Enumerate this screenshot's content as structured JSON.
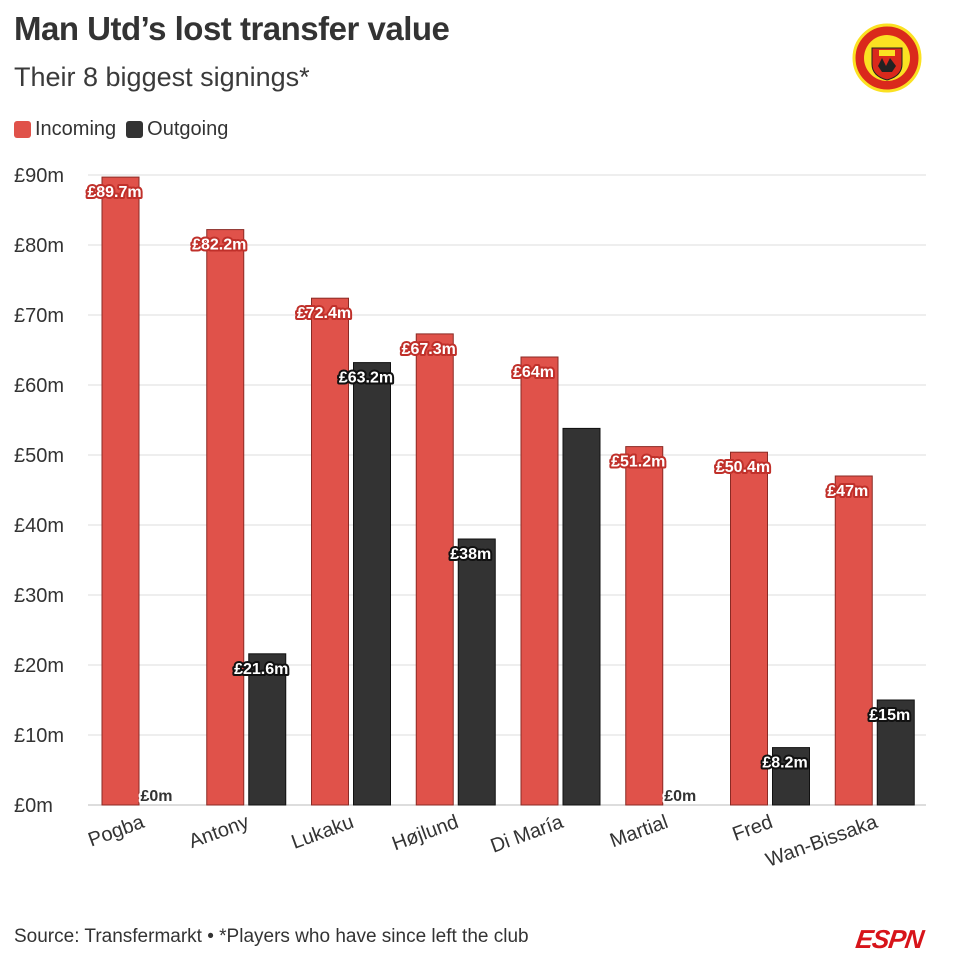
{
  "header": {
    "title": "Man Utd’s lost transfer value",
    "subtitle": "Their 8 biggest signings*"
  },
  "legend": {
    "incoming_label": "Incoming",
    "outgoing_label": "Outgoing"
  },
  "footer": {
    "source": "Source: Transfermarkt • *Players who have since left the club",
    "brand": "ESPN"
  },
  "colors": {
    "incoming": "#e0524a",
    "outgoing": "#333333",
    "grid": "#dddddd",
    "logo_red": "#da291c",
    "logo_gold": "#fbe122"
  },
  "icons": {
    "logo": "manchester-united-crest",
    "logo_text_top": "MANCHESTER",
    "logo_text_bottom": "UNITED"
  },
  "chart_data": {
    "type": "bar",
    "title": "Man Utd’s lost transfer value",
    "subtitle": "Their 8 biggest signings*",
    "categories": [
      "Pogba",
      "Antony",
      "Lukaku",
      "Højlund",
      "Di María",
      "Martial",
      "Fred",
      "Wan-Bissaka"
    ],
    "series": [
      {
        "name": "Incoming",
        "values": [
          89.7,
          82.2,
          72.4,
          67.3,
          64,
          51.2,
          50.4,
          47
        ],
        "labels": [
          "£89.7m",
          "£82.2m",
          "£72.4m",
          "£67.3m",
          "£64m",
          "£51.2m",
          "£50.4m",
          "£47m"
        ]
      },
      {
        "name": "Outgoing",
        "values": [
          0,
          21.6,
          63.2,
          38,
          53.8,
          0,
          8.2,
          15
        ],
        "labels": [
          "£0m",
          "£21.6m",
          "£63.2m",
          "£38m",
          "",
          "£0m",
          "£8.2m",
          "£15m"
        ]
      }
    ],
    "ylim": [
      0,
      90
    ],
    "yticks": [
      0,
      10,
      20,
      30,
      40,
      50,
      60,
      70,
      80,
      90
    ],
    "ytick_labels": [
      "£0m",
      "£10m",
      "£20m",
      "£30m",
      "£40m",
      "£50m",
      "£60m",
      "£70m",
      "£80m",
      "£90m"
    ],
    "xlabel": "",
    "ylabel": "",
    "grid": true,
    "legend_position": "top-left"
  }
}
